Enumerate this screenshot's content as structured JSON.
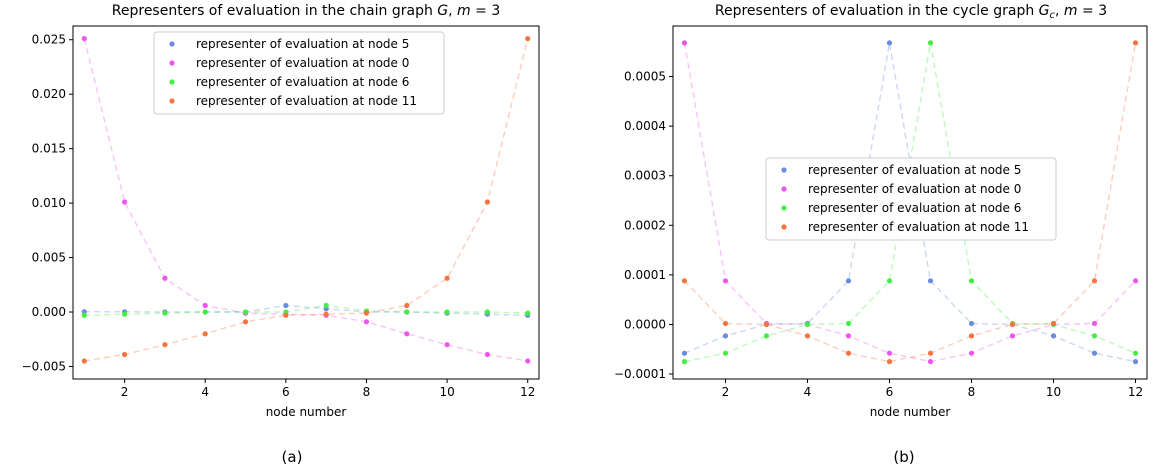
{
  "figure": {
    "panel_labels": [
      "(a)",
      "(b)"
    ]
  },
  "chart_data": [
    {
      "type": "scatter",
      "title": "Representers of evaluation in the chain graph G, m = 3",
      "title_parts": {
        "prefix": "Representers of evaluation in the chain graph ",
        "graph": "G",
        "sep": ", ",
        "m": "m",
        "eq": " = 3"
      },
      "xlabel": "node number",
      "ylabel": "",
      "xlim": [
        0.72,
        12.28
      ],
      "ylim": [
        -0.00615,
        0.02626
      ],
      "xticks": [
        2,
        4,
        6,
        8,
        10,
        12
      ],
      "xtick_labels": [
        "2",
        "4",
        "6",
        "8",
        "10",
        "12"
      ],
      "yticks": [
        -0.005,
        0.0,
        0.005,
        0.01,
        0.015,
        0.02,
        0.025
      ],
      "ytick_labels": [
        "−0.005",
        "0.000",
        "0.005",
        "0.010",
        "0.015",
        "0.020",
        "0.025"
      ],
      "grid": false,
      "legend_position": "upper-center",
      "line_style": "dashed",
      "x": [
        1,
        2,
        3,
        4,
        5,
        6,
        7,
        8,
        9,
        10,
        11,
        12
      ],
      "series": [
        {
          "name": "representer of evaluation at node 5",
          "color": "#6b8cde",
          "values": [
            3e-05,
            2e-05,
            0.0,
            0.0,
            0.0,
            0.0006,
            0.0003,
            0.0,
            0.0,
            -0.0001,
            -0.0002,
            -0.0003
          ]
        },
        {
          "name": "representer of evaluation at node 0",
          "color": "#f055f0",
          "values": [
            0.0251,
            0.0101,
            0.0031,
            0.0006,
            -0.0001,
            -0.0002,
            -0.0003,
            -0.0009,
            -0.002,
            -0.003,
            -0.0039,
            -0.0045
          ]
        },
        {
          "name": "representer of evaluation at node 6",
          "color": "#44ee44",
          "values": [
            -0.0003,
            -0.0002,
            -0.0001,
            0.0,
            0.0,
            0.0,
            0.0006,
            0.0001,
            0.0,
            0.0,
            0.0,
            -0.0001
          ]
        },
        {
          "name": "representer of evaluation at node 11",
          "color": "#f5743f",
          "values": [
            -0.0045,
            -0.0039,
            -0.003,
            -0.002,
            -0.0009,
            -0.0003,
            -0.0002,
            -0.0001,
            0.0006,
            0.0031,
            0.0101,
            0.0251
          ]
        }
      ]
    },
    {
      "type": "scatter",
      "title": "Representers of evaluation in the cycle graph Gc, m = 3",
      "title_parts": {
        "prefix": "Representers of evaluation in the cycle graph ",
        "graph": "G",
        "graph_sub": "c",
        "sep": ", ",
        "m": "m",
        "eq": " = 3"
      },
      "xlabel": "node number",
      "ylabel": "",
      "xlim": [
        0.72,
        12.28
      ],
      "ylim": [
        -0.00011,
        0.000602
      ],
      "xticks": [
        2,
        4,
        6,
        8,
        10,
        12
      ],
      "xtick_labels": [
        "2",
        "4",
        "6",
        "8",
        "10",
        "12"
      ],
      "yticks": [
        -0.0001,
        0.0,
        0.0001,
        0.0002,
        0.0003,
        0.0004,
        0.0005
      ],
      "ytick_labels": [
        "−0.0001",
        "0.0000",
        "0.0001",
        "0.0002",
        "0.0003",
        "0.0004",
        "0.0005"
      ],
      "grid": false,
      "legend_position": "center",
      "line_style": "dashed",
      "x": [
        1,
        2,
        3,
        4,
        5,
        6,
        7,
        8,
        9,
        10,
        11,
        12
      ],
      "series": [
        {
          "name": "representer of evaluation at node 5",
          "color": "#6b8cde",
          "values": [
            -5.8e-05,
            -2.3e-05,
            0.0,
            2e-06,
            8.8e-05,
            0.000568,
            8.8e-05,
            2e-06,
            0.0,
            -2.3e-05,
            -5.8e-05,
            -7.5e-05
          ]
        },
        {
          "name": "representer of evaluation at node 0",
          "color": "#f055f0",
          "values": [
            0.000568,
            8.8e-05,
            2e-06,
            0.0,
            -2.3e-05,
            -5.8e-05,
            -7.5e-05,
            -5.8e-05,
            -2.3e-05,
            0.0,
            2e-06,
            8.8e-05
          ]
        },
        {
          "name": "representer of evaluation at node 6",
          "color": "#44ee44",
          "values": [
            -7.5e-05,
            -5.8e-05,
            -2.3e-05,
            0.0,
            2e-06,
            8.8e-05,
            0.000568,
            8.8e-05,
            2e-06,
            0.0,
            -2.3e-05,
            -5.8e-05
          ]
        },
        {
          "name": "representer of evaluation at node 11",
          "color": "#f5743f",
          "values": [
            8.8e-05,
            2e-06,
            0.0,
            -2.3e-05,
            -5.8e-05,
            -7.5e-05,
            -5.8e-05,
            -2.3e-05,
            0.0,
            2e-06,
            8.8e-05,
            0.000568
          ]
        }
      ]
    }
  ]
}
